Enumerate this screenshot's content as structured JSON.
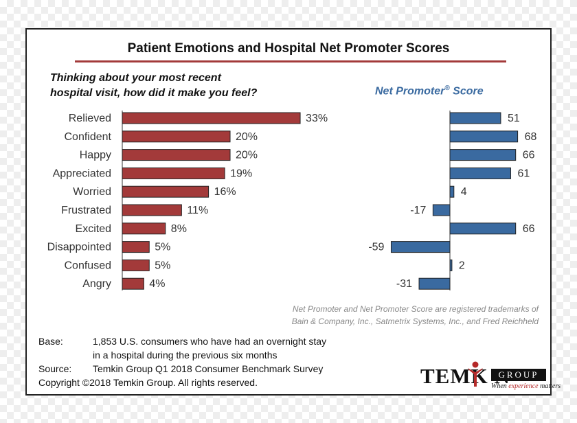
{
  "title": "Patient Emotions and Hospital Net Promoter Scores",
  "question_line1": "Thinking about your most recent",
  "question_line2": "hospital visit, how did it make you feel?",
  "nps_heading": "Net Promoter",
  "nps_heading_reg": "®",
  "nps_heading_suffix": " Score",
  "colors": {
    "emotion_bar": "#a33a3a",
    "nps_bar": "#3a6aa0",
    "title_rule": "#a33a3a"
  },
  "chart_data": [
    {
      "type": "bar",
      "orientation": "horizontal",
      "categories": [
        "Relieved",
        "Confident",
        "Happy",
        "Appreciated",
        "Worried",
        "Frustrated",
        "Excited",
        "Disappointed",
        "Confused",
        "Angry"
      ],
      "values": [
        33,
        20,
        20,
        19,
        16,
        11,
        8,
        5,
        5,
        4
      ],
      "data_labels": [
        "33%",
        "20%",
        "20%",
        "19%",
        "16%",
        "11%",
        "8%",
        "5%",
        "5%",
        "4%"
      ],
      "xlim": [
        0,
        50
      ]
    },
    {
      "type": "bar",
      "orientation": "horizontal",
      "title": "Net Promoter® Score",
      "categories": [
        "Relieved",
        "Confident",
        "Happy",
        "Appreciated",
        "Worried",
        "Frustrated",
        "Excited",
        "Disappointed",
        "Confused",
        "Angry"
      ],
      "values": [
        51,
        68,
        66,
        61,
        4,
        -17,
        66,
        -59,
        2,
        -31
      ],
      "data_labels": [
        "51",
        "68",
        "66",
        "61",
        "4",
        "-17",
        "66",
        "-59",
        "2",
        "-31"
      ],
      "xlim": [
        -100,
        100
      ]
    }
  ],
  "trademark_line1": "Net Promoter and Net Promoter Score are registered trademarks of",
  "trademark_line2": "Bain & Company, Inc., Satmetrix Systems, Inc., and Fred Reichheld",
  "footer": {
    "base_label": "Base:",
    "base_line1": "1,853 U.S. consumers who have had an overnight stay",
    "base_line2": "in a hospital during the previous six months",
    "source_label": "Source:",
    "source_text": "Temkin Group Q1 2018 Consumer Benchmark Survey",
    "copyright": "Copyright ©2018 Temkin Group. All rights reserved."
  },
  "logo": {
    "temkin": "TEMK N",
    "group": "GROUP",
    "tagline_pre": "When ",
    "tagline_highlight": "experience",
    "tagline_post": " matters"
  }
}
